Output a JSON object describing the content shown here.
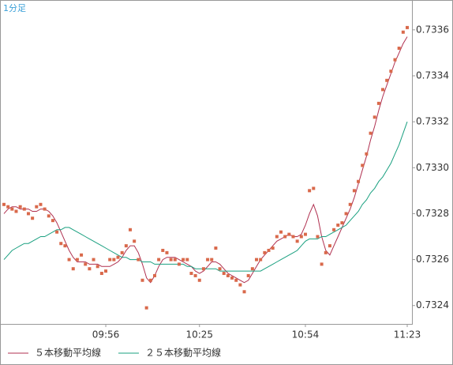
{
  "chart_data": {
    "type": "line",
    "title": "1分足",
    "categories": [
      null,
      null,
      null,
      null,
      null,
      null,
      null,
      null,
      null,
      null,
      null,
      null,
      null,
      null,
      null,
      null,
      null,
      null,
      null,
      null,
      null,
      null,
      null,
      null,
      null,
      "09:56",
      null,
      null,
      null,
      null,
      null,
      null,
      null,
      null,
      null,
      null,
      null,
      null,
      null,
      null,
      null,
      null,
      null,
      null,
      null,
      null,
      null,
      null,
      "10:25",
      null,
      null,
      null,
      null,
      null,
      null,
      null,
      null,
      null,
      null,
      null,
      null,
      null,
      null,
      null,
      null,
      null,
      null,
      null,
      null,
      null,
      null,
      null,
      null,
      null,
      "10:54",
      null,
      null,
      null,
      null,
      null,
      null,
      null,
      null,
      null,
      null,
      null,
      null,
      null,
      null,
      null,
      null,
      null,
      null,
      null,
      null,
      null,
      null,
      null,
      null,
      "11:23"
    ],
    "points": {
      "color": "#d9694b",
      "marker": "square",
      "values": [
        0.73284,
        0.73283,
        0.73282,
        0.73281,
        0.73283,
        0.73282,
        0.7328,
        0.73278,
        0.73283,
        0.73284,
        0.73282,
        0.73279,
        0.73277,
        0.73272,
        0.73267,
        0.73266,
        0.7326,
        0.73256,
        0.7326,
        0.73262,
        0.73258,
        0.73256,
        0.7326,
        0.73257,
        0.73254,
        0.73255,
        0.7326,
        0.7326,
        0.73261,
        0.73263,
        0.73266,
        0.73273,
        0.73268,
        0.7326,
        0.73251,
        0.73239,
        0.73251,
        0.73253,
        0.7326,
        0.73264,
        0.73263,
        0.7326,
        0.7326,
        0.73258,
        0.7326,
        0.7326,
        0.73254,
        0.73253,
        0.73251,
        0.73256,
        0.7326,
        0.7326,
        0.73265,
        0.73256,
        0.73254,
        0.73253,
        0.73252,
        0.73251,
        0.73249,
        0.73246,
        0.73253,
        0.73256,
        0.7326,
        0.7326,
        0.73263,
        0.73264,
        0.73265,
        0.7327,
        0.73272,
        0.7327,
        0.73271,
        0.7327,
        0.73268,
        0.7327,
        0.73271,
        0.7329,
        0.73291,
        0.7327,
        0.73258,
        0.73263,
        0.73266,
        0.73273,
        0.73275,
        0.73276,
        0.7328,
        0.73284,
        0.7329,
        0.73294,
        0.73301,
        0.73306,
        0.73315,
        0.73322,
        0.73328,
        0.73334,
        0.73338,
        0.73342,
        0.73347,
        0.73352,
        0.73359,
        0.73361
      ]
    },
    "series": [
      {
        "name": "５本移動平均線",
        "color": "#b03050",
        "values": [
          0.7328,
          0.73282,
          0.73283,
          0.73283,
          0.73282,
          0.73282,
          0.73282,
          0.73281,
          0.73281,
          0.73282,
          0.73282,
          0.73281,
          0.73279,
          0.73276,
          0.73272,
          0.73268,
          0.73264,
          0.73261,
          0.73259,
          0.73259,
          0.73259,
          0.73258,
          0.73258,
          0.73258,
          0.73257,
          0.73257,
          0.73257,
          0.73258,
          0.73259,
          0.73261,
          0.73264,
          0.73266,
          0.73266,
          0.73263,
          0.73258,
          0.73252,
          0.7325,
          0.73253,
          0.73257,
          0.7326,
          0.73261,
          0.73261,
          0.73261,
          0.7326,
          0.73259,
          0.73258,
          0.73257,
          0.73255,
          0.73254,
          0.73255,
          0.73257,
          0.73259,
          0.73259,
          0.73258,
          0.73256,
          0.73254,
          0.73253,
          0.73252,
          0.73251,
          0.7325,
          0.73251,
          0.73254,
          0.73257,
          0.7326,
          0.73262,
          0.73264,
          0.73266,
          0.73268,
          0.73269,
          0.7327,
          0.73271,
          0.7327,
          0.7327,
          0.73271,
          0.73275,
          0.7328,
          0.73284,
          0.73279,
          0.7327,
          0.73264,
          0.73262,
          0.73266,
          0.7327,
          0.73274,
          0.73278,
          0.73282,
          0.73287,
          0.73293,
          0.73299,
          0.73305,
          0.73312,
          0.73318,
          0.73325,
          0.73331,
          0.73336,
          0.73341,
          0.73346,
          0.7335,
          0.73354,
          0.73357
        ]
      },
      {
        "name": "２５本移動平均線",
        "color": "#1aa080",
        "values": [
          0.7326,
          0.73262,
          0.73264,
          0.73265,
          0.73266,
          0.73267,
          0.73267,
          0.73268,
          0.73269,
          0.7327,
          0.7327,
          0.73271,
          0.73272,
          0.73273,
          0.73273,
          0.73274,
          0.73274,
          0.73273,
          0.73272,
          0.73271,
          0.7327,
          0.73269,
          0.73268,
          0.73267,
          0.73266,
          0.73265,
          0.73264,
          0.73263,
          0.73262,
          0.73261,
          0.73261,
          0.7326,
          0.7326,
          0.7326,
          0.73259,
          0.73259,
          0.73259,
          0.73258,
          0.73258,
          0.73258,
          0.73258,
          0.73258,
          0.73258,
          0.73258,
          0.73258,
          0.73257,
          0.73257,
          0.73256,
          0.73256,
          0.73256,
          0.73256,
          0.73256,
          0.73256,
          0.73255,
          0.73255,
          0.73255,
          0.73255,
          0.73255,
          0.73255,
          0.73255,
          0.73255,
          0.73255,
          0.73255,
          0.73255,
          0.73256,
          0.73257,
          0.73258,
          0.73259,
          0.7326,
          0.73261,
          0.73262,
          0.73263,
          0.73264,
          0.73266,
          0.73268,
          0.73269,
          0.73269,
          0.73269,
          0.7327,
          0.7327,
          0.73271,
          0.73272,
          0.73273,
          0.73274,
          0.73275,
          0.73277,
          0.73279,
          0.73281,
          0.73284,
          0.73286,
          0.73289,
          0.73291,
          0.73294,
          0.73296,
          0.73299,
          0.73302,
          0.73306,
          0.7331,
          0.73315,
          0.7332
        ]
      }
    ],
    "ylim": [
      0.73232,
      0.73373
    ],
    "yticks": [
      0.7324,
      0.7326,
      0.7328,
      0.733,
      0.7332,
      0.7334,
      0.7336
    ],
    "ytick_decimals": 4,
    "grid": false
  }
}
